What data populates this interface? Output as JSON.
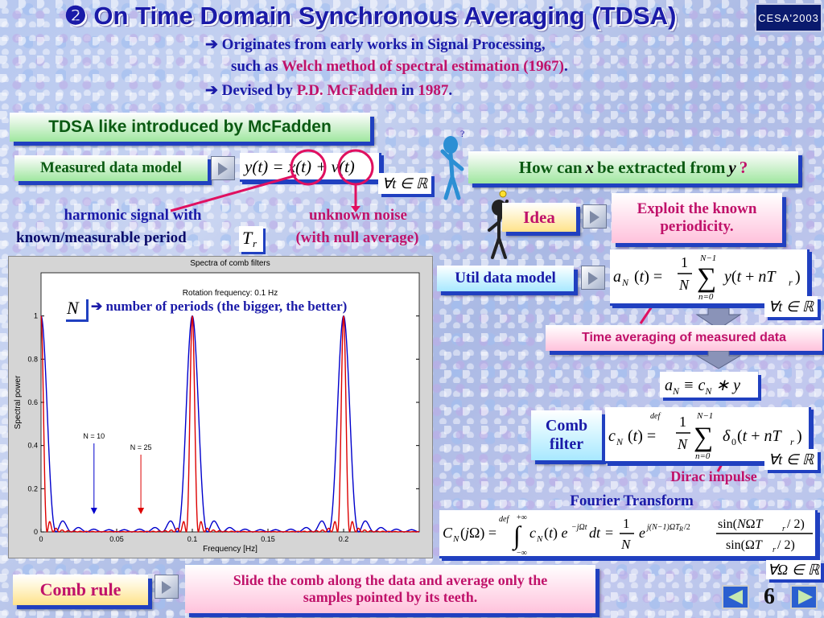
{
  "header": {
    "title": "❷ On Time Domain Synchronous Averaging (TDSA)",
    "badge": "CESA'2003"
  },
  "bullets": [
    {
      "arrow": "➔",
      "text_a": "Originates from early works in Signal Processing,",
      "text_b": "such as ",
      "highlight": "Welch method of spectral estimation (1967)",
      "text_c": "."
    },
    {
      "arrow": "➔",
      "text_a": "Devised by ",
      "highlight": "P.D. McFadden",
      "text_b": " in ",
      "highlight2": "1987",
      "text_c": "."
    }
  ],
  "section_title": "TDSA like introduced by McFadden",
  "measured_model": {
    "label": "Measured data model",
    "formula": "y(t) = x(t) + v(t)",
    "forall": "∀t ∈ ℝ"
  },
  "annotations": {
    "harmonic_line1": "harmonic signal with",
    "harmonic_line2": "known/measurable period",
    "period_symbol": "T",
    "period_sub": "r",
    "noise_line1": "unknown noise",
    "noise_line2": "(with null average)"
  },
  "question": {
    "a": "How can ",
    "x": "x",
    "b": " be extracted from ",
    "y": "y",
    "c": " ?"
  },
  "idea": {
    "label": "Idea",
    "text": "Exploit the known periodicity."
  },
  "util_model": {
    "label": "Util data model",
    "lhs": "a",
    "lhs_sub": "N",
    "rhs": "y(t + nT",
    "forall": "∀t ∈ ℝ",
    "caption": "Time averaging of measured data"
  },
  "conv": {
    "text": "a",
    "sub1": "N",
    "mid": " ≡ c",
    "sub2": "N",
    "end": " ∗ y"
  },
  "comb": {
    "label_line1": "Comb",
    "label_line2": "filter",
    "forall": "∀t ∈ ℝ",
    "dirac": "Dirac impulse"
  },
  "fourier": {
    "title": "Fourier Transform",
    "forall": "∀Ω ∈ ℝ"
  },
  "comb_rule": {
    "label": "Comb rule",
    "text_line1": "Slide the comb along the data and average only the",
    "text_line2": "samples pointed by its teeth."
  },
  "page_number": "6",
  "chart_data": {
    "type": "line",
    "title": "Spectra of comb filters",
    "subtitle": "Rotation frequency: 0.1 Hz",
    "xlabel": "Frequency [Hz]",
    "ylabel": "Spectral power",
    "xlim": [
      0,
      0.25
    ],
    "ylim": [
      0,
      1.2
    ],
    "xticks": [
      "0",
      "0.05",
      "0.1",
      "0.15",
      "0.2"
    ],
    "yticks": [
      "0",
      "0.2",
      "0.4",
      "0.6",
      "0.8",
      "1"
    ],
    "rotation_frequency": 0.1,
    "series": [
      {
        "name": "N = 10",
        "N": 10,
        "color": "#0000cc"
      },
      {
        "name": "N = 25",
        "N": 25,
        "color": "#dd0000"
      }
    ],
    "annotation_N": {
      "symbol": "N",
      "arrow": "➔",
      "text": "number of periods (the bigger, the better)"
    },
    "labels": [
      {
        "text": "N = 10",
        "arrow_x": 0.035
      },
      {
        "text": "N = 25",
        "arrow_x": 0.066
      }
    ]
  },
  "colors": {
    "blue": "#1a1aa8",
    "magenta": "#c0126a",
    "shadow": "#2040c0"
  }
}
